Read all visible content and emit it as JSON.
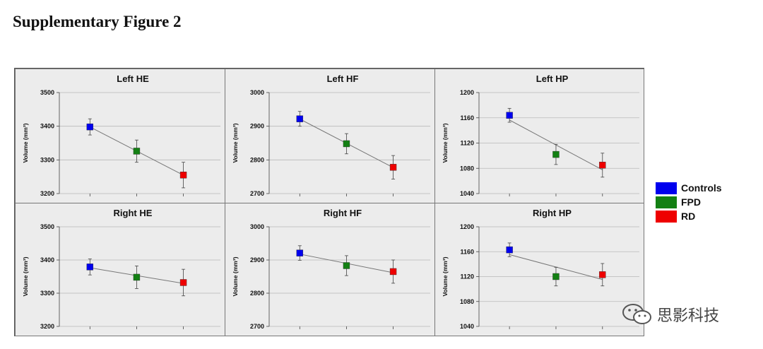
{
  "figure_title": "Supplementary Figure 2",
  "watermark": "思影科技",
  "legend": [
    {
      "label": "Controls",
      "color": "#0000ee"
    },
    {
      "label": "FPD",
      "color": "#138013"
    },
    {
      "label": "RD",
      "color": "#ee0000"
    }
  ],
  "chart_data": [
    {
      "type": "scatter",
      "title": "Left HE",
      "ylabel": "Volume (mm³)",
      "ylim": [
        3200,
        3500
      ],
      "yticks": [
        3200,
        3300,
        3400,
        3500
      ],
      "categories": [
        "Controls",
        "FPD",
        "RD"
      ],
      "values": [
        3398,
        3326,
        3255
      ],
      "errors": [
        24,
        33,
        38
      ],
      "trendline": true
    },
    {
      "type": "scatter",
      "title": "Left HF",
      "ylabel": "Volume (mm³)",
      "ylim": [
        2700,
        3000
      ],
      "yticks": [
        2700,
        2800,
        2900,
        3000
      ],
      "categories": [
        "Controls",
        "FPD",
        "RD"
      ],
      "values": [
        2922,
        2848,
        2778
      ],
      "errors": [
        22,
        30,
        35
      ],
      "trendline": true
    },
    {
      "type": "scatter",
      "title": "Left HP",
      "ylabel": "Volume (mm³)",
      "ylim": [
        1040,
        1200
      ],
      "yticks": [
        1040,
        1080,
        1120,
        1160,
        1200
      ],
      "categories": [
        "Controls",
        "FPD",
        "RD"
      ],
      "values": [
        1164,
        1102,
        1085
      ],
      "errors": [
        11,
        16,
        19
      ],
      "trendline": true
    },
    {
      "type": "scatter",
      "title": "Right HE",
      "ylabel": "Volume (mm³)",
      "ylim": [
        3200,
        3500
      ],
      "yticks": [
        3200,
        3300,
        3400,
        3500
      ],
      "categories": [
        "Controls",
        "FPD",
        "RD"
      ],
      "values": [
        3379,
        3348,
        3332
      ],
      "errors": [
        24,
        34,
        40
      ],
      "trendline": true
    },
    {
      "type": "scatter",
      "title": "Right HF",
      "ylabel": "Volume (mm³)",
      "ylim": [
        2700,
        3000
      ],
      "yticks": [
        2700,
        2800,
        2900,
        3000
      ],
      "categories": [
        "Controls",
        "FPD",
        "RD"
      ],
      "values": [
        2921,
        2883,
        2865
      ],
      "errors": [
        22,
        30,
        35
      ],
      "trendline": true
    },
    {
      "type": "scatter",
      "title": "Right HP",
      "ylabel": "Volume (mm³)",
      "ylim": [
        1040,
        1200
      ],
      "yticks": [
        1040,
        1080,
        1120,
        1160,
        1200
      ],
      "categories": [
        "Controls",
        "FPD",
        "RD"
      ],
      "values": [
        1163,
        1120,
        1123
      ],
      "errors": [
        11,
        15,
        18
      ],
      "trendline": true
    }
  ]
}
